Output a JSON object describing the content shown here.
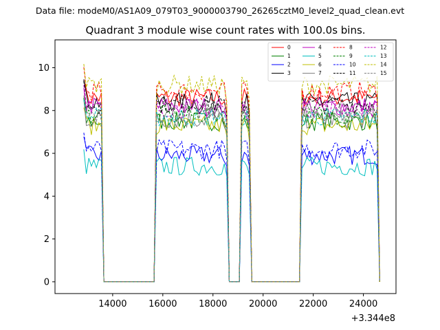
{
  "figure": {
    "suptitle": "Data file: modeM0/AS1A09_079T03_9000003790_26265cztM0_level2_quad_clean.evt",
    "offset_label": "+3.344e8"
  },
  "chart_data": {
    "type": "line",
    "title": "Quadrant 3 module wise count rates with 100.0s bins.",
    "xlabel": "",
    "ylabel": "",
    "x_offset": 334400000,
    "xlim": [
      11700,
      25300
    ],
    "ylim": [
      -0.55,
      11.3
    ],
    "xticks": [
      14000,
      16000,
      18000,
      20000,
      22000,
      24000
    ],
    "xtick_labels": [
      "14000",
      "16000",
      "18000",
      "20000",
      "22000",
      "24000"
    ],
    "yticks": [
      0,
      2,
      4,
      6,
      8,
      10
    ],
    "ytick_labels": [
      "0",
      "2",
      "4",
      "6",
      "8",
      "10"
    ],
    "legend_location": "upper right",
    "legend_columns": 4,
    "gti_segments": [
      {
        "start": 12850,
        "end": 13600,
        "rise_to": 13650
      },
      {
        "start": 15700,
        "end": 18550,
        "rise_to": 18600
      },
      {
        "start": 19100,
        "end": 19450,
        "rise_to": 19500
      },
      {
        "start": 21500,
        "end": 24600,
        "rise_to": 24650
      }
    ],
    "x_start": 12850,
    "x_end": 24650,
    "bin_width": 100,
    "series": [
      {
        "name": "0",
        "level": 8.6,
        "color": "#ff0000",
        "dash": false
      },
      {
        "name": "1",
        "level": 7.5,
        "color": "#008000",
        "dash": false
      },
      {
        "name": "2",
        "level": 5.9,
        "color": "#0000ff",
        "dash": false
      },
      {
        "name": "3",
        "level": 8.4,
        "color": "#000000",
        "dash": false
      },
      {
        "name": "4",
        "level": 8.2,
        "color": "#bf00bf",
        "dash": false
      },
      {
        "name": "5",
        "level": 5.4,
        "color": "#00bfbf",
        "dash": false
      },
      {
        "name": "6",
        "level": 7.3,
        "color": "#bfbf00",
        "dash": false
      },
      {
        "name": "7",
        "level": 7.6,
        "color": "#808080",
        "dash": false
      },
      {
        "name": "8",
        "level": 8.9,
        "color": "#ff0000",
        "dash": true
      },
      {
        "name": "9",
        "level": 7.8,
        "color": "#008000",
        "dash": true
      },
      {
        "name": "10",
        "level": 6.2,
        "color": "#0000ff",
        "dash": true
      },
      {
        "name": "11",
        "level": 8.3,
        "color": "#000000",
        "dash": true
      },
      {
        "name": "12",
        "level": 8.1,
        "color": "#bf00bf",
        "dash": true
      },
      {
        "name": "13",
        "level": 7.7,
        "color": "#00bfbf",
        "dash": true
      },
      {
        "name": "14",
        "level": 9.2,
        "color": "#bfbf00",
        "dash": true
      },
      {
        "name": "15",
        "level": 7.9,
        "color": "#808080",
        "dash": true
      }
    ]
  }
}
